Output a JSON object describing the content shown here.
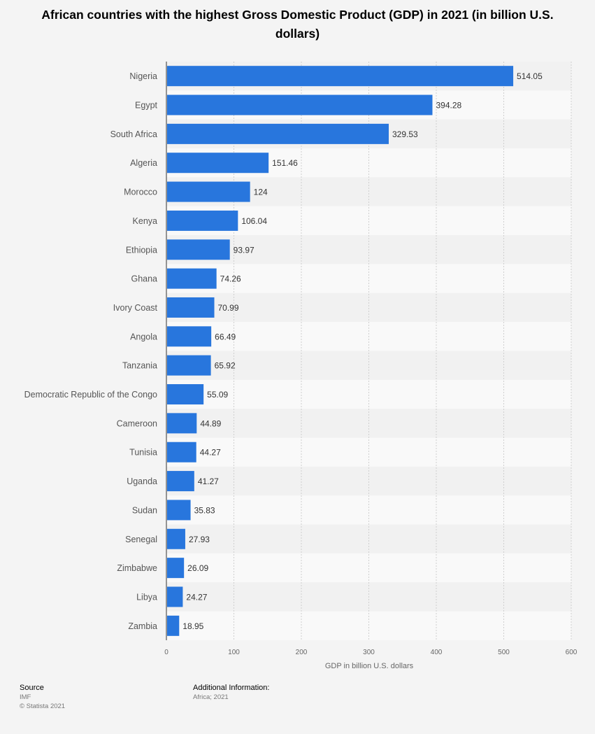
{
  "title": "African countries with the highest Gross Domestic Product (GDP) in 2021 (in billion U.S. dollars)",
  "footer": {
    "source_label": "Source",
    "source_value": "IMF",
    "copyright": "© Statista 2021",
    "additional_label": "Additional Information:",
    "additional_value": "Africa; 2021"
  },
  "colors": {
    "bar": "#2876dd",
    "row_alt": "#f1f1f1",
    "row": "#f9f9f9"
  },
  "chart_data": {
    "type": "bar",
    "orientation": "horizontal",
    "title": "African countries with the highest Gross Domestic Product (GDP) in 2021 (in billion U.S. dollars)",
    "xlabel": "GDP in billion U.S. dollars",
    "ylabel": "",
    "xlim": [
      0,
      600
    ],
    "xticks": [
      0,
      100,
      200,
      300,
      400,
      500,
      600
    ],
    "grid": true,
    "categories": [
      "Nigeria",
      "Egypt",
      "South Africa",
      "Algeria",
      "Morocco",
      "Kenya",
      "Ethiopia",
      "Ghana",
      "Ivory Coast",
      "Angola",
      "Tanzania",
      "Democratic Republic of the Congo",
      "Cameroon",
      "Tunisia",
      "Uganda",
      "Sudan",
      "Senegal",
      "Zimbabwe",
      "Libya",
      "Zambia"
    ],
    "values": [
      514.05,
      394.28,
      329.53,
      151.46,
      124,
      106.04,
      93.97,
      74.26,
      70.99,
      66.49,
      65.92,
      55.09,
      44.89,
      44.27,
      41.27,
      35.83,
      27.93,
      26.09,
      24.27,
      18.95
    ],
    "value_labels": [
      "514.05",
      "394.28",
      "329.53",
      "151.46",
      "124",
      "106.04",
      "93.97",
      "74.26",
      "70.99",
      "66.49",
      "65.92",
      "55.09",
      "44.89",
      "44.27",
      "41.27",
      "35.83",
      "27.93",
      "26.09",
      "24.27",
      "18.95"
    ]
  }
}
